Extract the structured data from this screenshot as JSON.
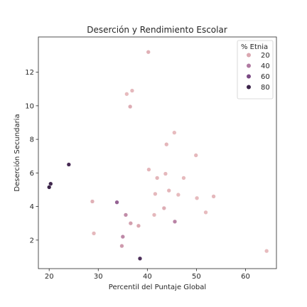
{
  "chart_data": {
    "type": "scatter",
    "title": "Deserción y Rendimiento Escolar",
    "xlabel": "Percentil del Puntaje Global",
    "ylabel": "Deserción Secundaria",
    "xlim": [
      17.8,
      66.3
    ],
    "ylim": [
      0.3,
      14.1
    ],
    "xticks": [
      20,
      30,
      40,
      50,
      60
    ],
    "yticks": [
      2,
      4,
      6,
      8,
      10,
      12
    ],
    "grid": false,
    "legend": {
      "title": "% Etnia",
      "placement": "top-right",
      "entries": [
        {
          "label": "20",
          "value": 20,
          "color": "#dba8b1"
        },
        {
          "label": "40",
          "value": 40,
          "color": "#b07aa2"
        },
        {
          "label": "60",
          "value": 60,
          "color": "#7a4a84"
        },
        {
          "label": "80",
          "value": 80,
          "color": "#3b2449"
        }
      ]
    },
    "colors": {
      "low": "#ecc3c3",
      "mid1": "#dba8b1",
      "mid2": "#b07aa2",
      "mid3": "#7a4a84",
      "high": "#3b2449"
    },
    "series": [
      {
        "points": [
          {
            "x": 40.2,
            "y": 13.2,
            "etnia": 14
          },
          {
            "x": 36.9,
            "y": 10.9,
            "etnia": 8
          },
          {
            "x": 35.8,
            "y": 10.7,
            "etnia": 6
          },
          {
            "x": 36.5,
            "y": 9.95,
            "etnia": 18
          },
          {
            "x": 45.5,
            "y": 8.4,
            "etnia": 6
          },
          {
            "x": 43.9,
            "y": 7.7,
            "etnia": 10
          },
          {
            "x": 49.9,
            "y": 7.05,
            "etnia": 8
          },
          {
            "x": 24.0,
            "y": 6.5,
            "etnia": 85
          },
          {
            "x": 40.3,
            "y": 6.2,
            "etnia": 10
          },
          {
            "x": 43.7,
            "y": 5.95,
            "etnia": 8
          },
          {
            "x": 42.0,
            "y": 5.7,
            "etnia": 10
          },
          {
            "x": 47.4,
            "y": 5.7,
            "etnia": 6
          },
          {
            "x": 20.3,
            "y": 5.35,
            "etnia": 88
          },
          {
            "x": 20.0,
            "y": 5.15,
            "etnia": 90
          },
          {
            "x": 44.4,
            "y": 4.95,
            "etnia": 10
          },
          {
            "x": 41.6,
            "y": 4.75,
            "etnia": 8
          },
          {
            "x": 46.3,
            "y": 4.7,
            "etnia": 6
          },
          {
            "x": 50.1,
            "y": 4.5,
            "etnia": 6
          },
          {
            "x": 53.5,
            "y": 4.6,
            "etnia": 8
          },
          {
            "x": 28.8,
            "y": 4.3,
            "etnia": 14
          },
          {
            "x": 33.8,
            "y": 4.25,
            "etnia": 50
          },
          {
            "x": 43.4,
            "y": 3.9,
            "etnia": 16
          },
          {
            "x": 51.9,
            "y": 3.65,
            "etnia": 6
          },
          {
            "x": 35.6,
            "y": 3.5,
            "etnia": 32
          },
          {
            "x": 41.4,
            "y": 3.5,
            "etnia": 8
          },
          {
            "x": 45.6,
            "y": 3.1,
            "etnia": 36
          },
          {
            "x": 36.6,
            "y": 3.0,
            "etnia": 24
          },
          {
            "x": 38.2,
            "y": 2.85,
            "etnia": 20
          },
          {
            "x": 29.1,
            "y": 2.4,
            "etnia": 8
          },
          {
            "x": 35.0,
            "y": 2.2,
            "etnia": 34
          },
          {
            "x": 34.8,
            "y": 1.65,
            "etnia": 26
          },
          {
            "x": 64.3,
            "y": 1.35,
            "etnia": 6
          },
          {
            "x": 38.5,
            "y": 0.9,
            "etnia": 82
          }
        ]
      }
    ]
  }
}
